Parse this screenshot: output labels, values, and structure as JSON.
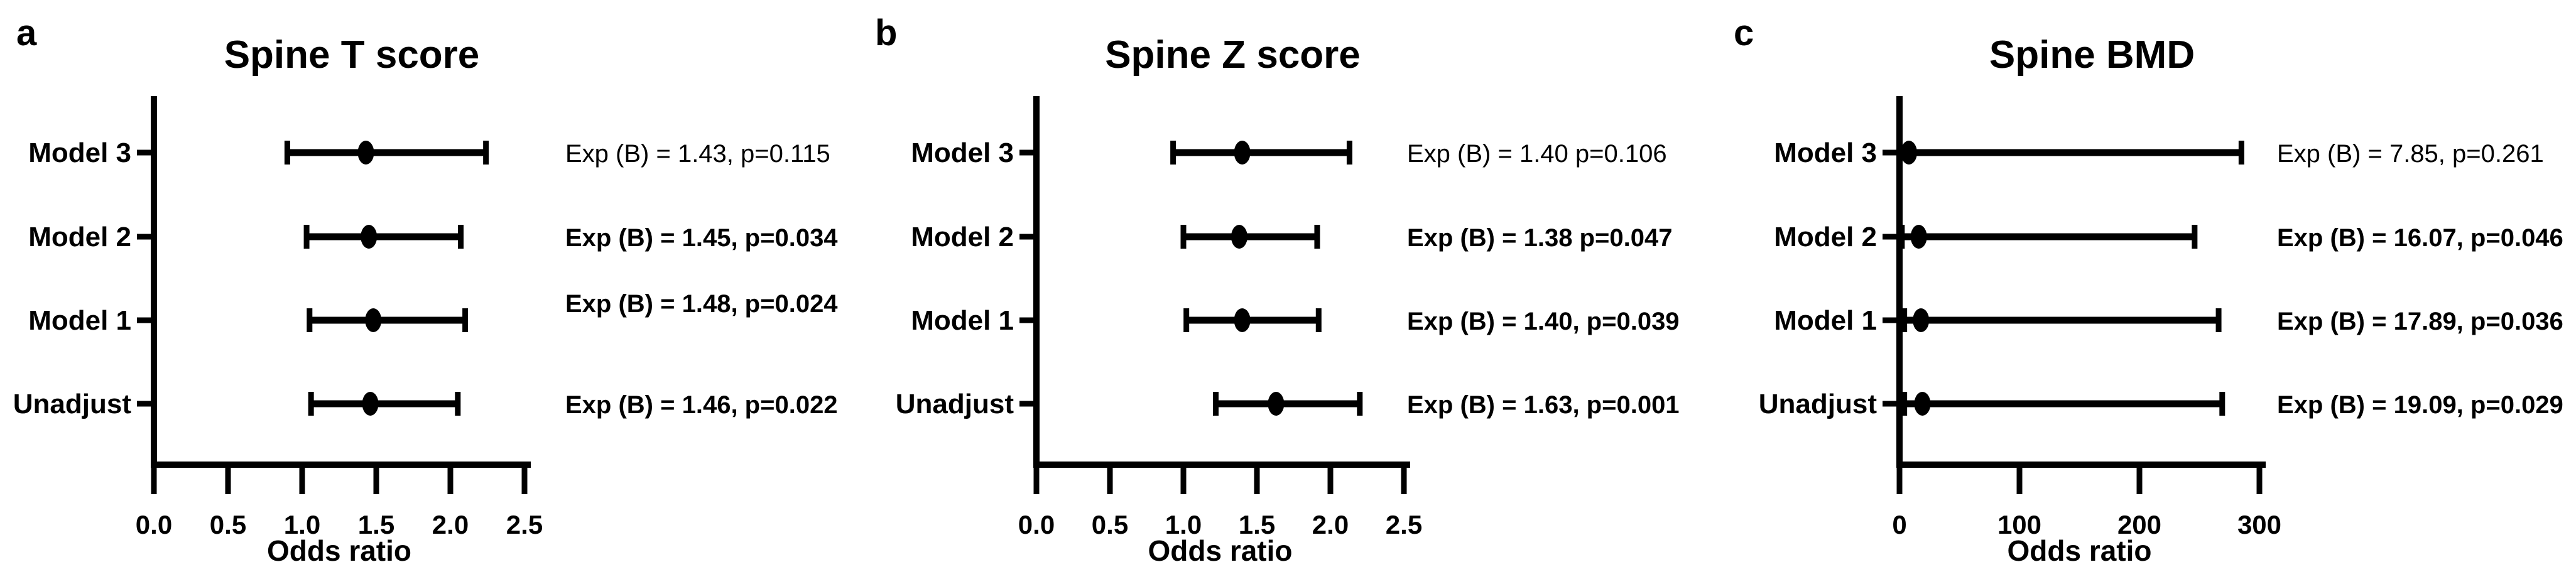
{
  "colors": {
    "foreground": "#000000",
    "background": "#ffffff"
  },
  "chart_data": [
    {
      "type": "scatter",
      "subtype": "forest-plot-with-error-bars",
      "panel_letter": "a",
      "title": "Spine T score",
      "xlabel": "Odds ratio",
      "ylabel": "",
      "xlim": [
        0,
        2.5
      ],
      "x_tick_values": [
        0,
        0.5,
        1.0,
        1.5,
        2.0,
        2.5
      ],
      "x_tick_labels": [
        "0.0",
        "0.5",
        "1.0",
        "1.5",
        "2.0",
        "2.5"
      ],
      "grid": false,
      "legend": "none",
      "categories": [
        "Model 3",
        "Model 2",
        "Model 1",
        "Unadjust"
      ],
      "rows": [
        {
          "label": "Model 3",
          "odds_ratio": 1.43,
          "ci_low": 0.9,
          "ci_high": 2.24,
          "p_value": 0.115,
          "annotation": "Exp (B) = 1.43, p=0.115",
          "annotation_bold": false
        },
        {
          "label": "Model 2",
          "odds_ratio": 1.45,
          "ci_low": 1.03,
          "ci_high": 2.07,
          "p_value": 0.034,
          "annotation": "Exp (B) = 1.45, p=0.034",
          "annotation_bold": true
        },
        {
          "label": "Model 1",
          "odds_ratio": 1.48,
          "ci_low": 1.05,
          "ci_high": 2.1,
          "p_value": 0.024,
          "annotation": "Exp (B) = 1.48, p=0.024",
          "annotation_bold": true
        },
        {
          "label": "Unadjust",
          "odds_ratio": 1.46,
          "ci_low": 1.06,
          "ci_high": 2.05,
          "p_value": 0.022,
          "annotation": "Exp (B) = 1.46, p=0.022",
          "annotation_bold": true
        }
      ]
    },
    {
      "type": "scatter",
      "subtype": "forest-plot-with-error-bars",
      "panel_letter": "b",
      "title": "Spine Z score",
      "xlabel": "Odds ratio",
      "ylabel": "",
      "xlim": [
        0,
        2.5
      ],
      "x_tick_values": [
        0,
        0.5,
        1.0,
        1.5,
        2.0,
        2.5
      ],
      "x_tick_labels": [
        "0.0",
        "0.5",
        "1.0",
        "1.5",
        "2.0",
        "2.5"
      ],
      "grid": false,
      "legend": "none",
      "categories": [
        "Model 3",
        "Model 2",
        "Model 1",
        "Unadjust"
      ],
      "rows": [
        {
          "label": "Model 3",
          "odds_ratio": 1.4,
          "ci_low": 0.93,
          "ci_high": 2.13,
          "p_value": 0.106,
          "annotation": "Exp (B) = 1.40 p=0.106",
          "annotation_bold": false
        },
        {
          "label": "Model 2",
          "odds_ratio": 1.38,
          "ci_low": 1.0,
          "ci_high": 1.91,
          "p_value": 0.047,
          "annotation": "Exp (B) = 1.38 p=0.047",
          "annotation_bold": true
        },
        {
          "label": "Model 1",
          "odds_ratio": 1.4,
          "ci_low": 1.02,
          "ci_high": 1.92,
          "p_value": 0.039,
          "annotation": "Exp (B) = 1.40, p=0.039",
          "annotation_bold": true
        },
        {
          "label": "Unadjust",
          "odds_ratio": 1.63,
          "ci_low": 1.22,
          "ci_high": 2.2,
          "p_value": 0.001,
          "annotation": "Exp (B) = 1.63, p=0.001",
          "annotation_bold": true
        }
      ]
    },
    {
      "type": "scatter",
      "subtype": "forest-plot-with-error-bars",
      "panel_letter": "c",
      "title": "Spine BMD",
      "xlabel": "Odds ratio",
      "ylabel": "",
      "xlim": [
        0,
        300
      ],
      "x_tick_values": [
        0,
        100,
        200,
        300
      ],
      "x_tick_labels": [
        "0",
        "100",
        "200",
        "300"
      ],
      "grid": false,
      "legend": "none",
      "categories": [
        "Model 3",
        "Model 2",
        "Model 1",
        "Unadjust"
      ],
      "rows": [
        {
          "label": "Model 3",
          "odds_ratio": 7.85,
          "ci_low": 0,
          "ci_high": 285,
          "p_value": 0.261,
          "annotation": "Exp (B) = 7.85, p=0.261",
          "annotation_bold": false
        },
        {
          "label": "Model 2",
          "odds_ratio": 16.07,
          "ci_low": 2,
          "ci_high": 246,
          "p_value": 0.046,
          "annotation": "Exp (B) = 16.07, p=0.046",
          "annotation_bold": true
        },
        {
          "label": "Model 1",
          "odds_ratio": 17.89,
          "ci_low": 4,
          "ci_high": 266,
          "p_value": 0.036,
          "annotation": "Exp (B) = 17.89, p=0.036",
          "annotation_bold": true
        },
        {
          "label": "Unadjust",
          "odds_ratio": 19.09,
          "ci_low": 4,
          "ci_high": 269,
          "p_value": 0.029,
          "annotation": "Exp (B) = 19.09, p=0.029",
          "annotation_bold": true
        }
      ]
    }
  ]
}
